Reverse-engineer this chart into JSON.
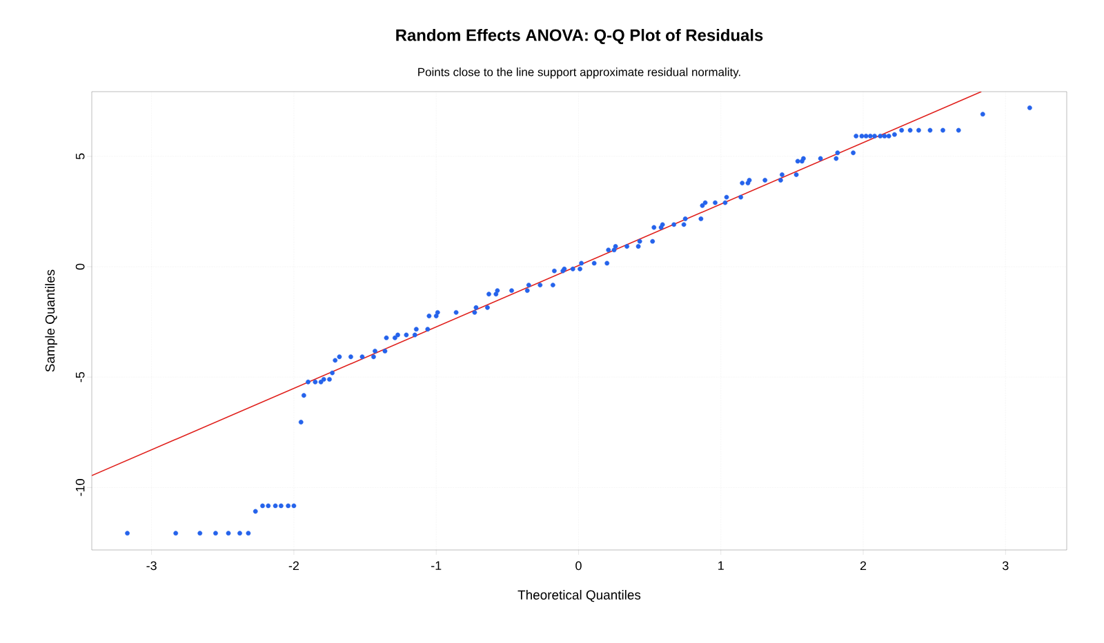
{
  "chart_data": {
    "type": "scatter",
    "title": "Random Effects ANOVA: Q-Q Plot of Residuals",
    "subtitle": "Points close to the line support approximate residual normality.",
    "xlabel": "Theoretical Quantiles",
    "ylabel": "Sample Quantiles",
    "xlim": [
      -3.42,
      3.43
    ],
    "ylim": [
      -12.83,
      7.93
    ],
    "xticks": [
      -3,
      -2,
      -1,
      0,
      1,
      2,
      3
    ],
    "yticks": [
      -10,
      -5,
      0,
      5
    ],
    "grid": true,
    "series": [
      {
        "marker": "circle",
        "color": "#2563eb",
        "x": [
          -3.17,
          -2.83,
          -2.66,
          -2.55,
          -2.46,
          -2.38,
          -2.32,
          -2.27,
          -2.22,
          -2.18,
          -2.13,
          -2.09,
          -2.04,
          -2.0,
          -1.95,
          -1.93,
          -1.9,
          -1.85,
          -1.81,
          -1.79,
          -1.75,
          -1.73,
          -1.71,
          -1.68,
          -1.6,
          -1.52,
          -1.44,
          -1.43,
          -1.36,
          -1.35,
          -1.29,
          -1.27,
          -1.21,
          -1.15,
          -1.14,
          -1.06,
          -1.05,
          -1.0,
          -0.99,
          -0.86,
          -0.73,
          -0.72,
          -0.64,
          -0.63,
          -0.58,
          -0.57,
          -0.47,
          -0.36,
          -0.35,
          -0.27,
          -0.18,
          -0.17,
          -0.11,
          -0.1,
          -0.04,
          0.01,
          0.02,
          0.11,
          0.2,
          0.21,
          0.25,
          0.26,
          0.34,
          0.42,
          0.43,
          0.52,
          0.53,
          0.58,
          0.59,
          0.67,
          0.74,
          0.75,
          0.86,
          0.87,
          0.89,
          0.96,
          1.03,
          1.04,
          1.14,
          1.15,
          1.19,
          1.2,
          1.31,
          1.42,
          1.43,
          1.53,
          1.54,
          1.57,
          1.58,
          1.7,
          1.81,
          1.82,
          1.93,
          1.95,
          1.99,
          2.02,
          2.05,
          2.08,
          2.12,
          2.15,
          2.18,
          2.22,
          2.27,
          2.33,
          2.39,
          2.47,
          2.56,
          2.67,
          2.84,
          3.17
        ],
        "values": [
          -12.07,
          -12.07,
          -12.07,
          -12.07,
          -12.07,
          -12.07,
          -12.07,
          -11.08,
          -10.83,
          -10.83,
          -10.83,
          -10.83,
          -10.83,
          -10.83,
          -7.04,
          -5.83,
          -5.22,
          -5.22,
          -5.22,
          -5.1,
          -5.1,
          -4.81,
          -4.24,
          -4.08,
          -4.08,
          -4.08,
          -4.08,
          -3.82,
          -3.82,
          -3.22,
          -3.22,
          -3.09,
          -3.09,
          -3.09,
          -2.83,
          -2.83,
          -2.23,
          -2.23,
          -2.07,
          -2.07,
          -2.07,
          -1.85,
          -1.85,
          -1.24,
          -1.24,
          -1.08,
          -1.08,
          -1.08,
          -0.83,
          -0.83,
          -0.83,
          -0.19,
          -0.19,
          -0.1,
          -0.1,
          -0.1,
          0.16,
          0.16,
          0.16,
          0.76,
          0.76,
          0.92,
          0.92,
          0.92,
          1.15,
          1.15,
          1.78,
          1.78,
          1.91,
          1.91,
          1.91,
          2.17,
          2.17,
          2.77,
          2.9,
          2.9,
          2.9,
          3.15,
          3.15,
          3.79,
          3.79,
          3.92,
          3.92,
          3.92,
          4.17,
          4.17,
          4.78,
          4.78,
          4.9,
          4.9,
          4.9,
          5.16,
          5.16,
          5.92,
          5.92,
          5.92,
          5.92,
          5.92,
          5.92,
          5.92,
          5.92,
          5.99,
          6.18,
          6.18,
          6.18,
          6.18,
          6.18,
          6.18,
          6.91,
          7.2
        ]
      },
      {
        "type": "line",
        "marker": "none",
        "color": "#e0201c",
        "line_style": "solid",
        "x": [
          -3.42,
          2.83
        ],
        "values": [
          -9.46,
          7.93
        ]
      }
    ]
  }
}
